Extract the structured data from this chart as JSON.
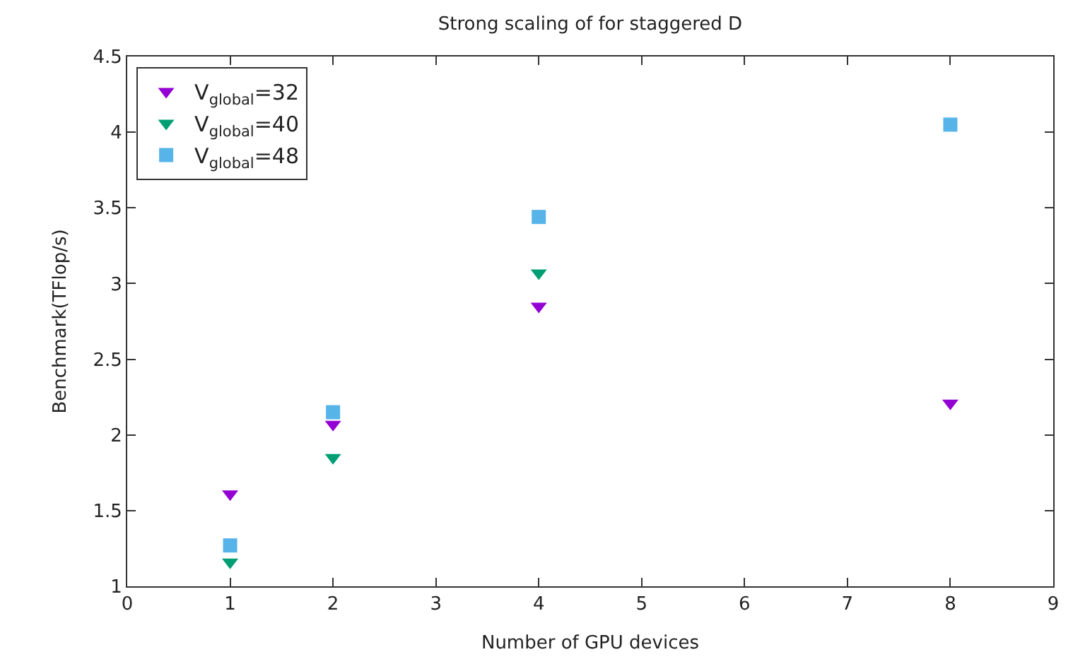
{
  "chart_data": {
    "type": "scatter",
    "title": "Strong scaling of for staggered D",
    "xlabel": "Number of GPU devices",
    "ylabel": "Benchmark(TFlop/s)",
    "x": [
      1,
      2,
      4,
      8
    ],
    "series": [
      {
        "name": "V$_{global}$=32",
        "color": "#9400d3",
        "marker": "triangle",
        "values": [
          1.61,
          2.07,
          2.85,
          2.21
        ]
      },
      {
        "name": "V$_{global}$=40",
        "color": "#009e73",
        "marker": "triangle",
        "values": [
          1.16,
          1.85,
          3.07,
          null
        ]
      },
      {
        "name": "V$_{global}$=48",
        "color": "#56b4e9",
        "marker": "square",
        "values": [
          1.27,
          2.15,
          3.44,
          4.05
        ]
      }
    ],
    "xlim": [
      0,
      9
    ],
    "xticks": [
      0,
      1,
      2,
      3,
      4,
      5,
      6,
      7,
      8,
      9
    ],
    "ylim": [
      1,
      4.5
    ],
    "yticks": [
      1,
      1.5,
      2,
      2.5,
      3,
      3.5,
      4,
      4.5
    ],
    "legend": "top left"
  }
}
